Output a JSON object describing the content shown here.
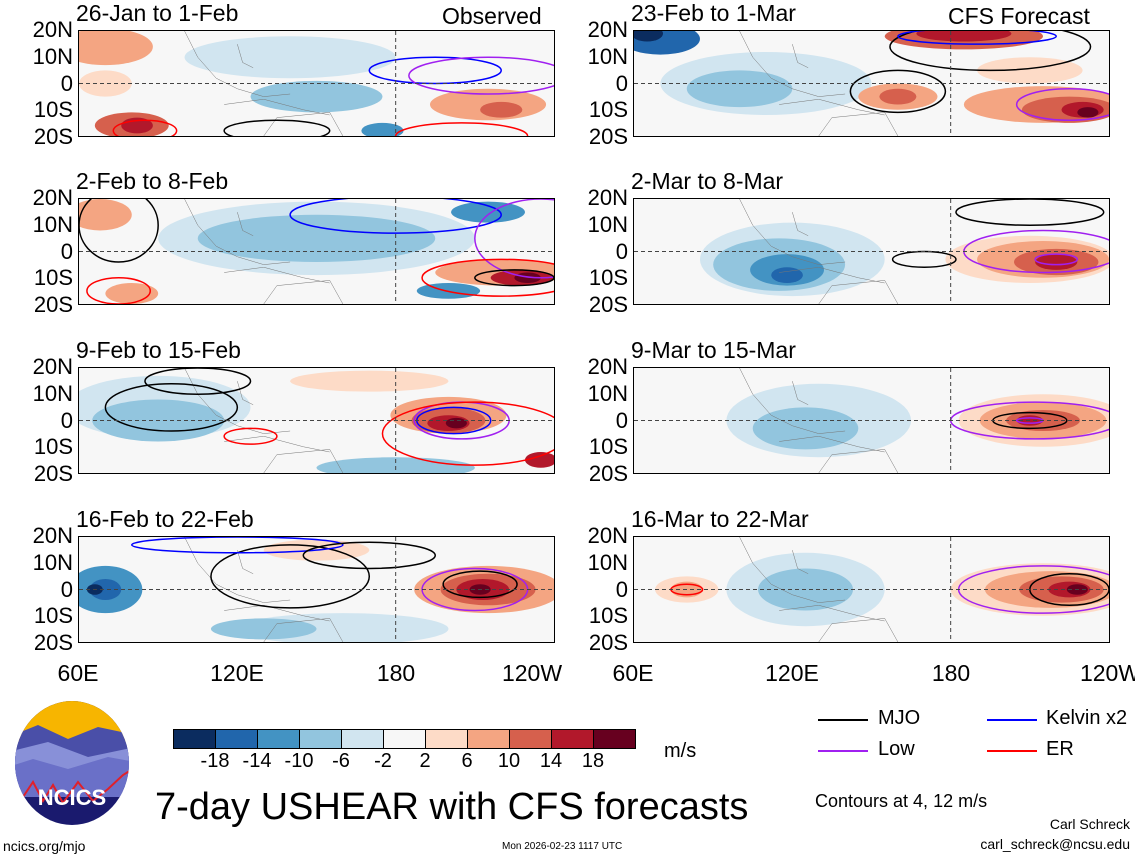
{
  "title": "7-day USHEAR with CFS forecasts",
  "observed_label": "Observed",
  "forecast_label": "CFS Forecast",
  "panels_left": [
    {
      "title": "26-Jan to 1-Feb"
    },
    {
      "title": "2-Feb to 8-Feb"
    },
    {
      "title": "9-Feb to 15-Feb"
    },
    {
      "title": "16-Feb to 22-Feb"
    }
  ],
  "panels_right": [
    {
      "title": "23-Feb to 1-Mar"
    },
    {
      "title": "2-Mar to 8-Mar"
    },
    {
      "title": "9-Mar to 15-Mar"
    },
    {
      "title": "16-Mar to 22-Mar"
    }
  ],
  "lat_labels": [
    "20N",
    "10N",
    "0",
    "10S",
    "20S"
  ],
  "lon_labels": [
    "60E",
    "120E",
    "180",
    "120W"
  ],
  "colorbar": {
    "ticks": [
      "-18",
      "-14",
      "-10",
      "-6",
      "-2",
      "2",
      "6",
      "10",
      "14",
      "18"
    ],
    "colors": [
      "#0b2c5f",
      "#2166ac",
      "#4393c3",
      "#92c5de",
      "#d1e5f0",
      "#f7f7f7",
      "#fddbc7",
      "#f4a582",
      "#d6604d",
      "#b2182b",
      "#67001f"
    ],
    "units": "m/s"
  },
  "legend": {
    "items": [
      {
        "label": "MJO",
        "color": "#000000"
      },
      {
        "label": "Kelvin x2",
        "color": "#0000ff"
      },
      {
        "label": "Low",
        "color": "#a020f0"
      },
      {
        "label": "ER",
        "color": "#ff0000"
      }
    ],
    "contours_note": "Contours at 4, 12 m/s"
  },
  "logo_text": "NCICS",
  "site": "ncics.org/mjo",
  "timestamp": "Mon 2026-02-23 1117 UTC",
  "author": "Carl Schreck",
  "email": "carl_schreck@ncsu.edu"
}
